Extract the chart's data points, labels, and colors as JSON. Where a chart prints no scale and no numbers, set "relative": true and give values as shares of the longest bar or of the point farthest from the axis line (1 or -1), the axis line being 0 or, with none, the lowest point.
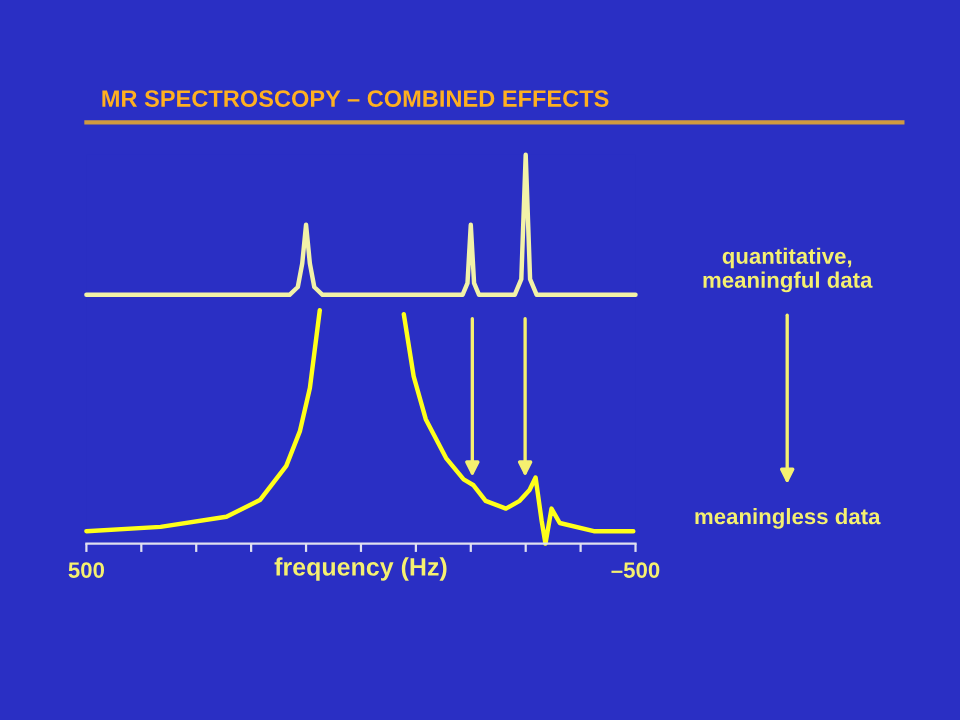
{
  "chart_data": {
    "type": "line",
    "relative": true,
    "title": "MR SPECTROSCOPY – COMBINED EFFECTS",
    "xlabel": "frequency (Hz)",
    "xlim": [
      500,
      -500
    ],
    "xticks": [
      500,
      {
        "value": 400,
        "label": null
      },
      {
        "value": 300,
        "label": null
      },
      {
        "value": 200,
        "label": null
      },
      {
        "value": 100,
        "label": null
      },
      {
        "value": 0,
        "label": null
      },
      {
        "value": -100,
        "label": null
      },
      {
        "value": -200,
        "label": null
      },
      {
        "value": -300,
        "label": null
      },
      {
        "value": -400,
        "label": null
      },
      {
        "value": -500,
        "label": "–500"
      }
    ],
    "annotations": [
      "quantitative,\nmeaningful data",
      "meaningless data"
    ],
    "series": [
      {
        "color": "#f2f2a8",
        "x": [
          500,
          130,
          115,
          107,
          100,
          93,
          85,
          70,
          -185,
          -194,
          -200,
          -206,
          -215,
          -280,
          -292,
          -300,
          -308,
          -320,
          -500
        ],
        "values": [
          0.64,
          0.64,
          0.66,
          0.72,
          0.82,
          0.72,
          0.66,
          0.64,
          0.64,
          0.67,
          0.82,
          0.67,
          0.64,
          0.64,
          0.68,
          1.0,
          0.68,
          0.64,
          0.64
        ]
      },
      {
        "color": "#ffff1a",
        "x": [
          500,
          365,
          245,
          184,
          136,
          111,
          93,
          75,
          0,
          -78,
          -96,
          -118,
          -155,
          -187,
          -205,
          -227,
          -264,
          -289,
          -307,
          -318,
          -329,
          -336,
          -347,
          -362,
          -424,
          -496
        ],
        "values": [
          0.032,
          0.043,
          0.069,
          0.112,
          0.2,
          0.29,
          0.4,
          0.6,
          null,
          0.59,
          0.43,
          0.32,
          0.22,
          0.165,
          0.15,
          0.11,
          0.09,
          0.11,
          0.138,
          0.17,
          0.059,
          0.0,
          0.09,
          0.053,
          0.032,
          0.032
        ]
      }
    ]
  }
}
